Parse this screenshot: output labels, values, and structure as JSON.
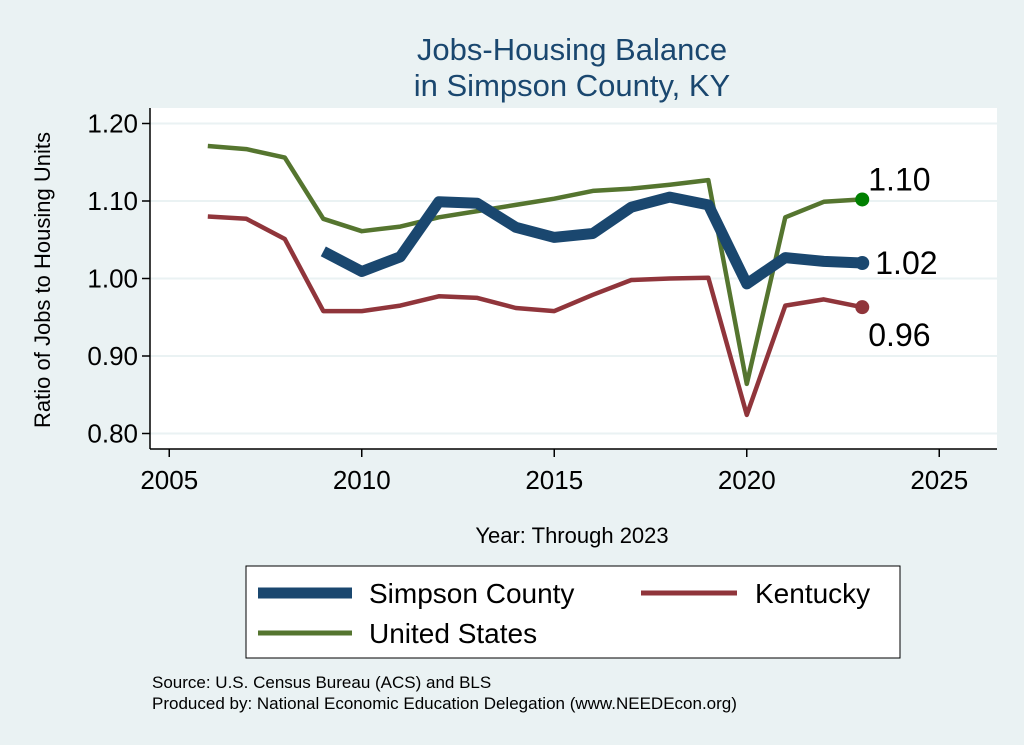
{
  "chart_data": {
    "type": "line",
    "title": [
      "Jobs-Housing Balance",
      "in Simpson County, KY"
    ],
    "xlabel": "Year: Through 2023",
    "ylabel": "Ratio of Jobs to Housing Units",
    "xlim": [
      2004.5,
      2026.5
    ],
    "ylim": [
      0.78,
      1.22
    ],
    "xticks": [
      {
        "value": 2005,
        "label": "2005"
      },
      {
        "value": 2010,
        "label": "2010"
      },
      {
        "value": 2015,
        "label": "2015"
      },
      {
        "value": 2020,
        "label": "2020"
      },
      {
        "value": 2025,
        "label": "2025"
      }
    ],
    "yticks": [
      {
        "value": 0.8,
        "label": "0.80"
      },
      {
        "value": 0.9,
        "label": "0.90"
      },
      {
        "value": 1.0,
        "label": "1.00"
      },
      {
        "value": 1.1,
        "label": "1.10"
      },
      {
        "value": 1.2,
        "label": "1.20"
      }
    ],
    "grid": true,
    "colors": {
      "background": "#eaf2f3",
      "plot_area": "#ffffff",
      "title": "#1a476f",
      "simpson": "#1a476f",
      "kentucky": "#90353b",
      "us": "#55752f",
      "us_marker": "#008000",
      "gridline": "#eaf2f3"
    },
    "series": [
      {
        "key": "simpson",
        "name": "Simpson County",
        "weight": "thick",
        "x": [
          2009,
          2010,
          2011,
          2012,
          2013,
          2014,
          2015,
          2016,
          2017,
          2018,
          2019,
          2020,
          2021,
          2022,
          2023
        ],
        "values": [
          1.035,
          1.009,
          1.028,
          1.099,
          1.097,
          1.066,
          1.053,
          1.058,
          1.092,
          1.105,
          1.095,
          0.993,
          1.027,
          1.022,
          1.02
        ],
        "end_label": "1.02"
      },
      {
        "key": "kentucky",
        "name": "Kentucky",
        "weight": "normal",
        "x": [
          2006,
          2007,
          2008,
          2009,
          2010,
          2011,
          2012,
          2013,
          2014,
          2015,
          2016,
          2017,
          2018,
          2019,
          2020,
          2021,
          2022,
          2023
        ],
        "values": [
          1.08,
          1.077,
          1.051,
          0.958,
          0.958,
          0.965,
          0.977,
          0.975,
          0.962,
          0.958,
          0.979,
          0.998,
          1.0,
          1.001,
          0.824,
          0.965,
          0.973,
          0.963
        ],
        "end_label": "0.96"
      },
      {
        "key": "us",
        "name": "United States",
        "weight": "normal",
        "x": [
          2006,
          2007,
          2008,
          2009,
          2010,
          2011,
          2012,
          2013,
          2014,
          2015,
          2016,
          2017,
          2018,
          2019,
          2020,
          2021,
          2022,
          2023
        ],
        "values": [
          1.171,
          1.167,
          1.156,
          1.077,
          1.061,
          1.067,
          1.079,
          1.087,
          1.095,
          1.103,
          1.113,
          1.116,
          1.121,
          1.127,
          0.864,
          1.079,
          1.099,
          1.102
        ],
        "end_label": "1.10"
      }
    ],
    "legend": {
      "position": "bottom",
      "entries": [
        "Simpson County",
        "Kentucky",
        "United States"
      ]
    },
    "source_lines": [
      "Source: U.S. Census Bureau (ACS) and BLS",
      "Produced by: National Economic Education Delegation (www.NEEDEcon.org)"
    ]
  }
}
